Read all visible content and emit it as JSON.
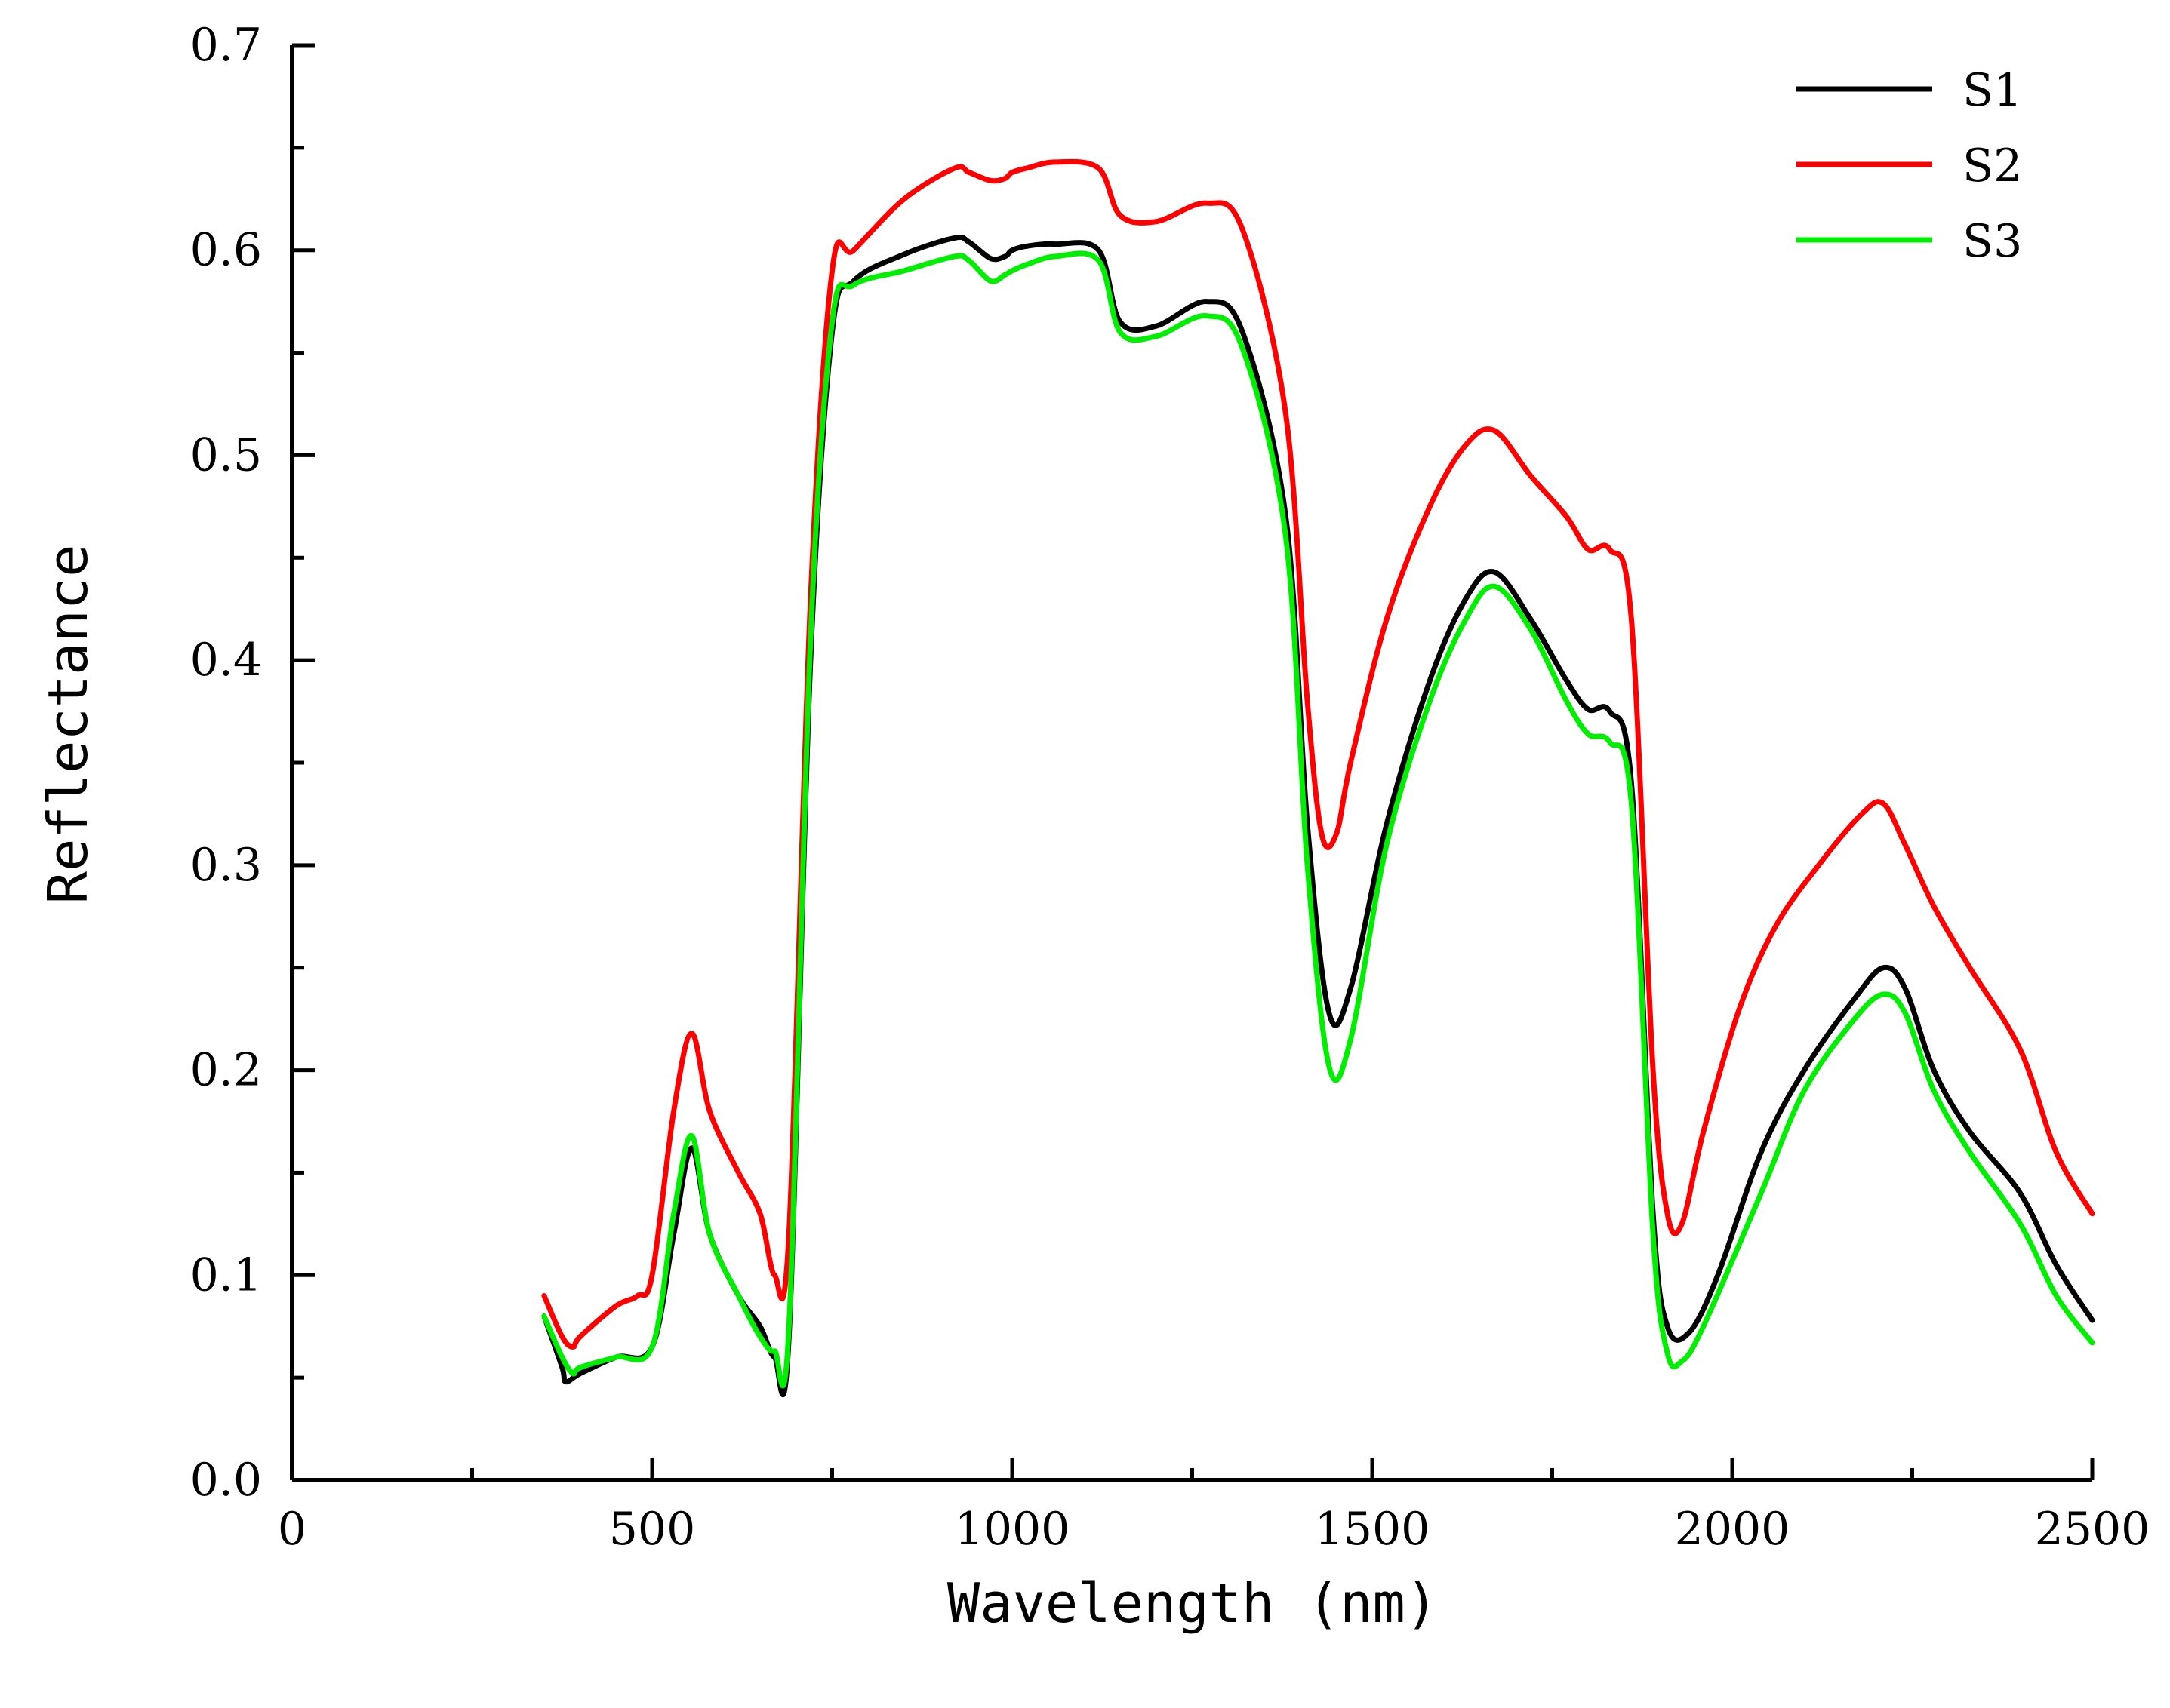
{
  "chart_data": {
    "type": "line",
    "title": "",
    "xlabel": "Wavelength (nm)",
    "ylabel": "Reflectance",
    "xlim": [
      0,
      2500
    ],
    "ylim": [
      0.0,
      0.7
    ],
    "xticks": [
      0,
      500,
      1000,
      1500,
      2000,
      2500
    ],
    "xtick_labels": [
      "0",
      "500",
      "1000",
      "1500",
      "2000",
      "2500"
    ],
    "yticks": [
      0.0,
      0.1,
      0.2,
      0.3,
      0.4,
      0.5,
      0.6,
      0.7
    ],
    "ytick_labels": [
      "0.0",
      "0.1",
      "0.2",
      "0.3",
      "0.4",
      "0.5",
      "0.6",
      "0.7"
    ],
    "grid": false,
    "legend_position": "top-right",
    "series": [
      {
        "name": "S1",
        "color": "#000000",
        "x": [
          350,
          375,
          380,
          400,
          450,
          500,
          530,
          555,
          580,
          620,
          650,
          670,
          690,
          720,
          750,
          780,
          850,
          920,
          940,
          970,
          990,
          1000,
          1020,
          1060,
          1120,
          1150,
          1200,
          1270,
          1320,
          1380,
          1410,
          1440,
          1470,
          1520,
          1580,
          1630,
          1670,
          1720,
          1770,
          1800,
          1830,
          1860,
          1890,
          1910,
          1940,
          1980,
          2040,
          2100,
          2170,
          2210,
          2240,
          2280,
          2330,
          2400,
          2450,
          2500
        ],
        "y": [
          0.08,
          0.055,
          0.048,
          0.052,
          0.06,
          0.065,
          0.12,
          0.162,
          0.12,
          0.09,
          0.075,
          0.06,
          0.07,
          0.4,
          0.56,
          0.585,
          0.598,
          0.606,
          0.604,
          0.596,
          0.597,
          0.6,
          0.602,
          0.603,
          0.6,
          0.565,
          0.563,
          0.575,
          0.56,
          0.47,
          0.32,
          0.228,
          0.24,
          0.32,
          0.39,
          0.43,
          0.443,
          0.42,
          0.39,
          0.376,
          0.375,
          0.34,
          0.13,
          0.075,
          0.072,
          0.1,
          0.16,
          0.2,
          0.235,
          0.25,
          0.24,
          0.2,
          0.17,
          0.14,
          0.105,
          0.078
        ]
      },
      {
        "name": "S2",
        "color": "#ff0000",
        "x": [
          350,
          375,
          390,
          400,
          450,
          480,
          500,
          530,
          555,
          580,
          620,
          650,
          670,
          690,
          720,
          750,
          780,
          850,
          920,
          940,
          970,
          990,
          1000,
          1020,
          1060,
          1120,
          1150,
          1200,
          1270,
          1320,
          1380,
          1410,
          1430,
          1450,
          1470,
          1520,
          1580,
          1630,
          1670,
          1720,
          1770,
          1800,
          1830,
          1860,
          1890,
          1910,
          1930,
          1960,
          2010,
          2060,
          2120,
          2180,
          2210,
          2240,
          2280,
          2330,
          2400,
          2450,
          2500
        ],
        "y": [
          0.09,
          0.07,
          0.065,
          0.07,
          0.085,
          0.09,
          0.1,
          0.18,
          0.218,
          0.18,
          0.15,
          0.13,
          0.1,
          0.12,
          0.43,
          0.59,
          0.6,
          0.625,
          0.64,
          0.638,
          0.634,
          0.635,
          0.638,
          0.64,
          0.643,
          0.64,
          0.617,
          0.614,
          0.623,
          0.61,
          0.52,
          0.38,
          0.315,
          0.315,
          0.35,
          0.42,
          0.475,
          0.505,
          0.512,
          0.49,
          0.47,
          0.454,
          0.454,
          0.42,
          0.2,
          0.13,
          0.125,
          0.17,
          0.23,
          0.27,
          0.3,
          0.325,
          0.33,
          0.31,
          0.28,
          0.25,
          0.21,
          0.16,
          0.13
        ]
      },
      {
        "name": "S3",
        "color": "#00ee00",
        "x": [
          350,
          375,
          390,
          400,
          450,
          500,
          530,
          555,
          580,
          620,
          650,
          670,
          690,
          720,
          750,
          780,
          850,
          920,
          940,
          970,
          990,
          1000,
          1020,
          1060,
          1120,
          1150,
          1200,
          1270,
          1320,
          1380,
          1410,
          1440,
          1470,
          1520,
          1580,
          1630,
          1670,
          1720,
          1770,
          1800,
          1830,
          1860,
          1890,
          1910,
          1930,
          1960,
          2040,
          2100,
          2170,
          2210,
          2240,
          2280,
          2330,
          2400,
          2450,
          2500
        ],
        "y": [
          0.08,
          0.06,
          0.052,
          0.055,
          0.06,
          0.065,
          0.13,
          0.168,
          0.12,
          0.09,
          0.07,
          0.063,
          0.075,
          0.41,
          0.565,
          0.583,
          0.59,
          0.597,
          0.595,
          0.585,
          0.588,
          0.59,
          0.593,
          0.597,
          0.595,
          0.56,
          0.558,
          0.568,
          0.552,
          0.46,
          0.3,
          0.202,
          0.215,
          0.31,
          0.38,
          0.42,
          0.436,
          0.415,
          0.38,
          0.364,
          0.36,
          0.33,
          0.12,
          0.062,
          0.058,
          0.075,
          0.14,
          0.19,
          0.225,
          0.237,
          0.228,
          0.19,
          0.16,
          0.125,
          0.09,
          0.067
        ]
      }
    ]
  }
}
